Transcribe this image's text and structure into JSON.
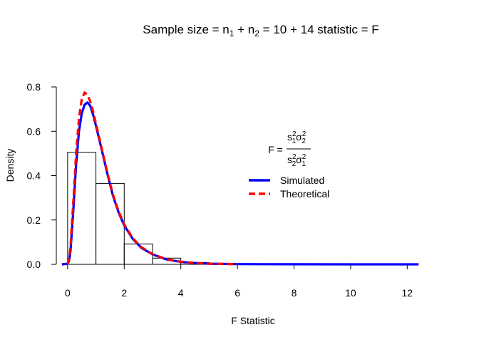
{
  "chart_data": {
    "type": "histogram",
    "title": {
      "prefix": "Sample size = n",
      "sub1": "1",
      "plus1": " + ",
      "n2": "n",
      "sub2": "2",
      "eq": " = 10",
      "plus2": " + ",
      "suffix": "14 statistic = F"
    },
    "xlabel": "F Statistic",
    "ylabel": "Density",
    "xlim": [
      -0.4,
      13.0
    ],
    "ylim": [
      0,
      0.8
    ],
    "xticks": [
      "0",
      "2",
      "4",
      "6",
      "8",
      "10",
      "12"
    ],
    "yticks": [
      "0.0",
      "0.2",
      "0.4",
      "0.6",
      "0.8"
    ],
    "histogram": {
      "bin_edges": [
        0,
        1,
        2,
        3,
        4,
        5,
        6
      ],
      "densities": [
        0.505,
        0.365,
        0.092,
        0.028,
        0.008,
        0.002
      ]
    },
    "series": [
      {
        "name": "Simulated",
        "color": "#0000ff",
        "style": "solid",
        "x": [
          -0.2,
          0.0,
          0.05,
          0.1,
          0.2,
          0.3,
          0.4,
          0.5,
          0.6,
          0.7,
          0.8,
          0.9,
          1.0,
          1.2,
          1.4,
          1.6,
          1.8,
          2.0,
          2.3,
          2.6,
          3.0,
          3.5,
          4.0,
          4.5,
          5.0,
          6.0,
          7.0,
          8.0,
          10.0,
          12.4
        ],
        "y": [
          0.0,
          0.003,
          0.015,
          0.06,
          0.24,
          0.45,
          0.6,
          0.68,
          0.72,
          0.73,
          0.715,
          0.675,
          0.625,
          0.52,
          0.41,
          0.31,
          0.235,
          0.175,
          0.115,
          0.075,
          0.045,
          0.022,
          0.011,
          0.006,
          0.003,
          0.001,
          0.0005,
          0.0002,
          0.0001,
          0.0
        ]
      },
      {
        "name": "Theoretical",
        "color": "#ff0000",
        "style": "dashed",
        "x": [
          0.0,
          0.05,
          0.1,
          0.2,
          0.3,
          0.4,
          0.5,
          0.6,
          0.7,
          0.8,
          0.9,
          1.0,
          1.2,
          1.4,
          1.6,
          1.8,
          2.0,
          2.3,
          2.6,
          3.0,
          3.5,
          4.0,
          4.5,
          5.0,
          6.0
        ],
        "y": [
          0.0,
          0.02,
          0.08,
          0.28,
          0.5,
          0.66,
          0.745,
          0.775,
          0.765,
          0.735,
          0.69,
          0.635,
          0.525,
          0.415,
          0.315,
          0.24,
          0.18,
          0.118,
          0.078,
          0.046,
          0.023,
          0.012,
          0.006,
          0.003,
          0.001
        ]
      }
    ],
    "legend": {
      "position": "right",
      "entries": [
        "Simulated",
        "Theoretical"
      ]
    },
    "formula": {
      "lhs": "F",
      "eq": " = ",
      "s": "s",
      "sigma": "σ",
      "one": "1",
      "two": "2"
    }
  }
}
